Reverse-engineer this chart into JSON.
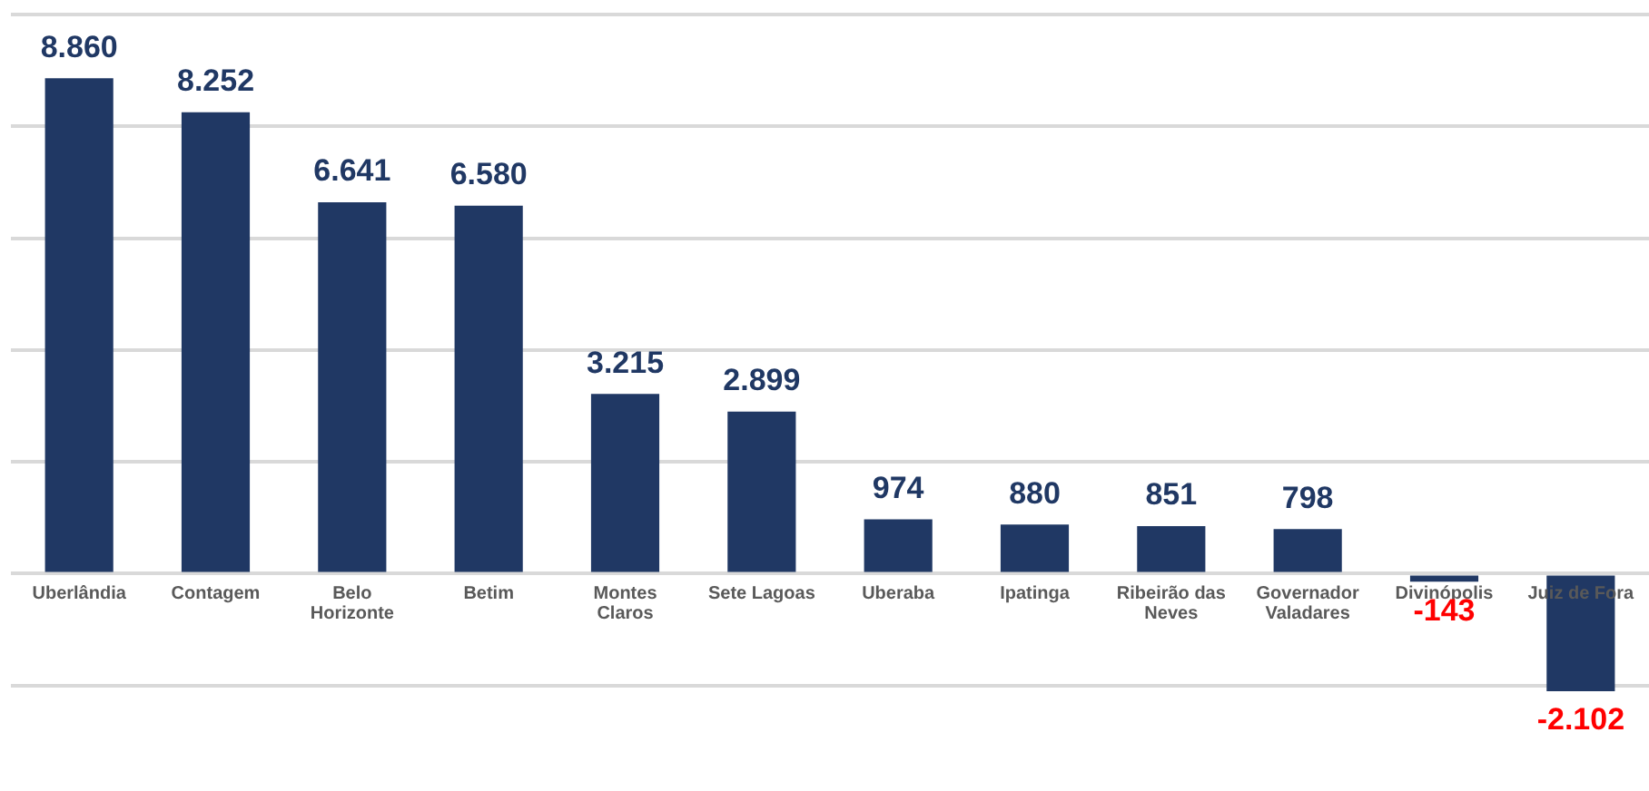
{
  "chart_data": {
    "type": "bar",
    "categories": [
      "Uberlândia",
      "Contagem",
      "Belo Horizonte",
      "Betim",
      "Montes Claros",
      "Sete Lagoas",
      "Uberaba",
      "Ipatinga",
      "Ribeirão das Neves",
      "Governador Valadares",
      "Divinópolis",
      "Juiz de Fora"
    ],
    "values": [
      8860,
      8252,
      6641,
      6580,
      3215,
      2899,
      974,
      880,
      851,
      798,
      -143,
      -2102
    ],
    "value_labels": [
      "8.860",
      "8.252",
      "6.641",
      "6.580",
      "3.215",
      "2.899",
      "974",
      "880",
      "851",
      "798",
      "-143",
      "-2.102"
    ],
    "color": "#203864",
    "yticks": [
      {
        "value": -2000,
        "label": null
      },
      {
        "value": 0,
        "label": null
      },
      {
        "value": 2000,
        "label": null
      },
      {
        "value": 4000,
        "label": null
      },
      {
        "value": 6000,
        "label": null
      },
      {
        "value": 8000,
        "label": null
      },
      {
        "value": 10000,
        "label": null
      }
    ],
    "grid": "y",
    "tick_labels": "x",
    "legend": false
  }
}
